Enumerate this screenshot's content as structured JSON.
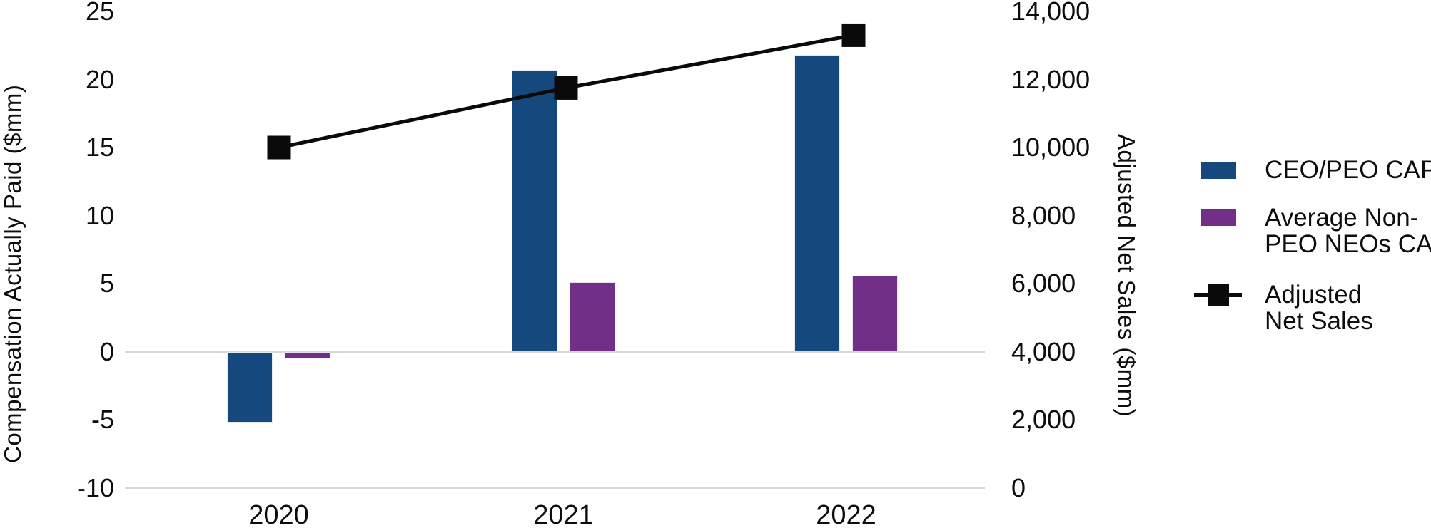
{
  "chart_data": {
    "type": "combo",
    "categories": [
      "2020",
      "2021",
      "2022"
    ],
    "series": [
      {
        "name": "CEO/PEO CAP",
        "type": "bar",
        "axis": "left",
        "color": "#15497D",
        "values": [
          -5.2,
          20.7,
          21.8
        ]
      },
      {
        "name": "Average Non-PEO NEOs CAP",
        "type": "bar",
        "axis": "left",
        "color": "#712F87",
        "values": [
          -0.5,
          5.1,
          5.6
        ]
      },
      {
        "name": "Adjusted Net Sales",
        "type": "line",
        "axis": "right",
        "color": "#0a0a0a",
        "marker": "square",
        "values": [
          10000,
          11750,
          13300
        ]
      }
    ],
    "left_axis": {
      "title": "Compensation Actually Paid ($mm)",
      "ticks": [
        25,
        20,
        15,
        10,
        5,
        0,
        -5,
        -10
      ],
      "tick_labels": [
        "25",
        "20",
        "15",
        "10",
        "5",
        "0",
        "-5",
        "-10"
      ],
      "range": [
        -10,
        25
      ],
      "gridlines_at": [
        0,
        -10
      ]
    },
    "right_axis": {
      "title": "Adjusted Net Sales ($mm)",
      "ticks": [
        14000,
        12000,
        10000,
        8000,
        6000,
        4000,
        2000,
        0
      ],
      "tick_labels": [
        "14,000",
        "12,000",
        "10,000",
        "8,000",
        "6,000",
        "4,000",
        "2,000",
        "0"
      ],
      "range": [
        0,
        14000
      ]
    },
    "grid": "horizontal lines only at left-axis 0 and -10",
    "legend_position": "right"
  },
  "legend": {
    "items": [
      {
        "swatch": "bar",
        "color": "#15497D",
        "label_lines": [
          "CEO/PEO CAP"
        ]
      },
      {
        "swatch": "bar",
        "color": "#712F87",
        "label_lines": [
          "Average Non-",
          "PEO NEOs CAP"
        ]
      },
      {
        "swatch": "line-marker",
        "color": "#0a0a0a",
        "label_lines": [
          "Adjusted",
          "Net Sales"
        ]
      }
    ]
  },
  "colors": {
    "bar_primary": "#15497D",
    "bar_secondary": "#712F87",
    "line": "#0a0a0a",
    "gridline": "#d7d7d7",
    "text": "#0d0d0d",
    "background": "#ffffff"
  }
}
